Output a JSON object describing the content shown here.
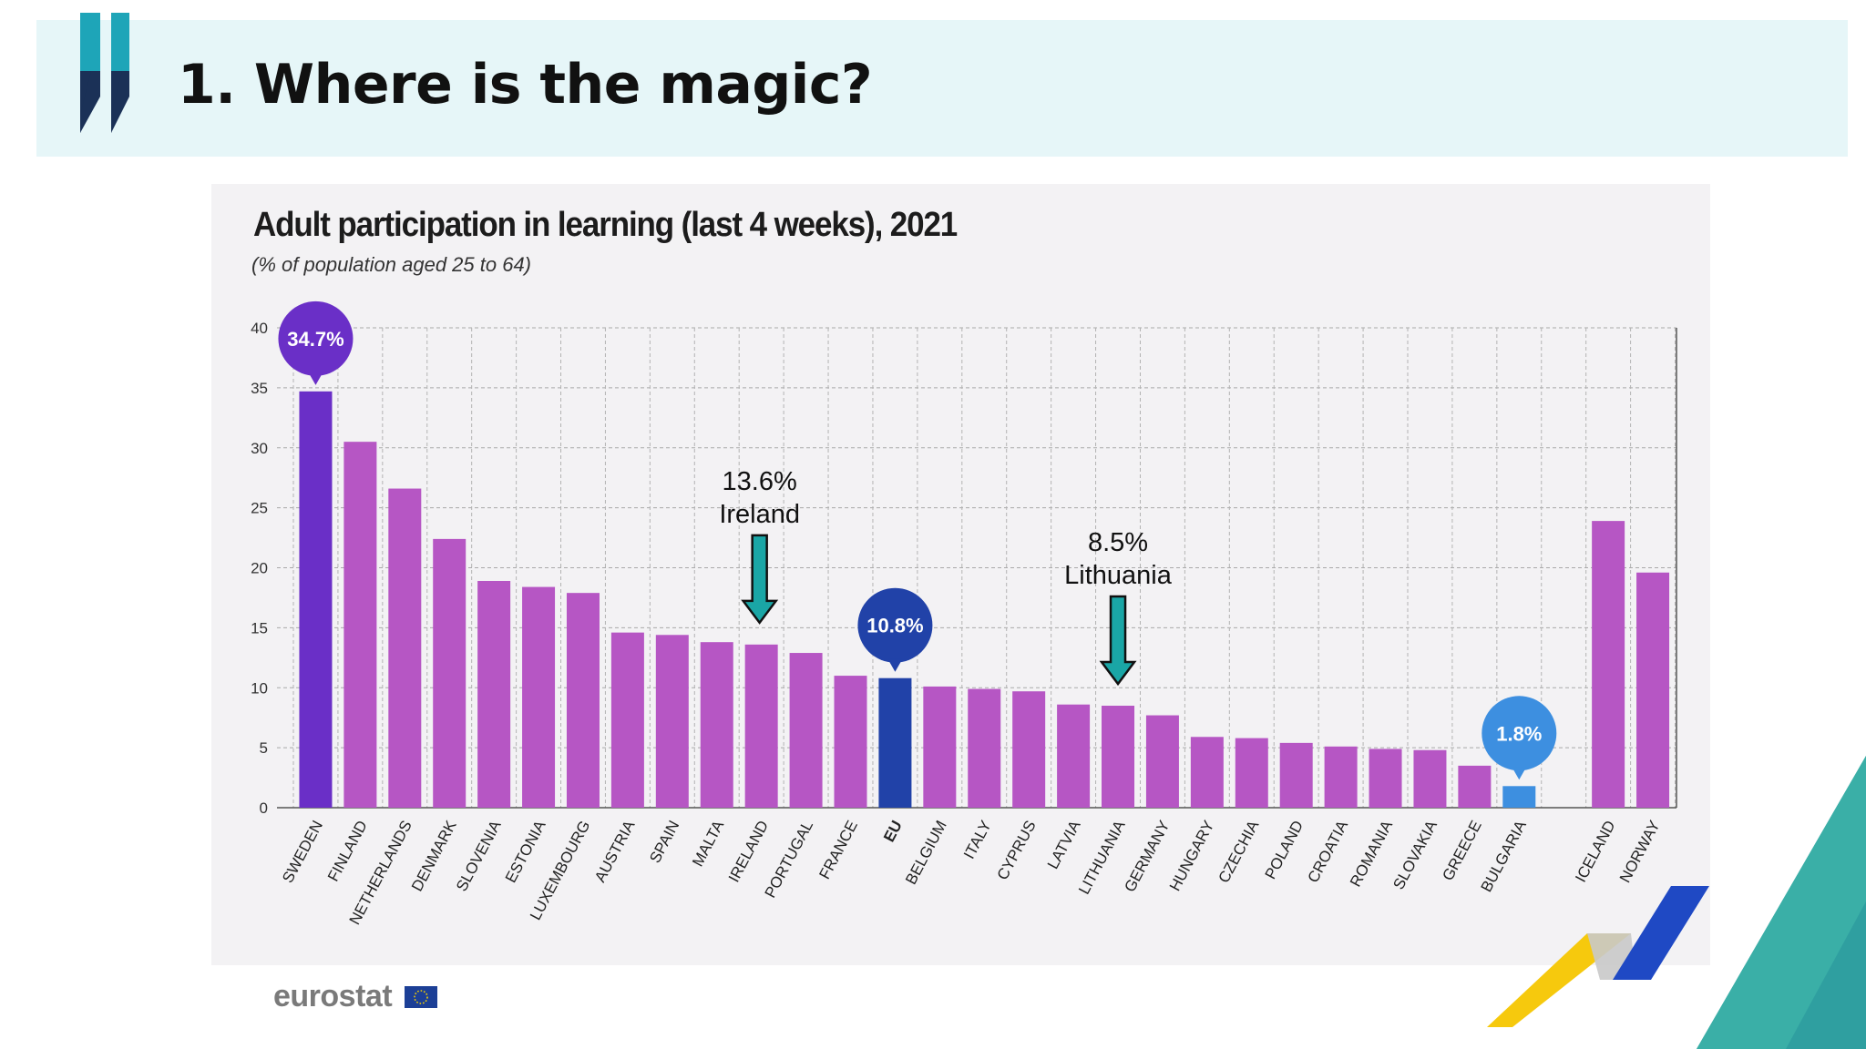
{
  "slide": {
    "title": "1. Where is the magic?",
    "brand": "eurostat"
  },
  "colors": {
    "header_bg": "#e6f6f8",
    "bar_default": "#b656c4",
    "bar_highlight_top": "#6a2fc7",
    "bar_eu": "#2142a8",
    "bar_lowest": "#3d8fe0",
    "arrow": "#1aa6a6"
  },
  "chart_data": {
    "type": "bar",
    "title": "Adult participation in learning (last 4 weeks), 2021",
    "subtitle": "(% of population aged 25 to 64)",
    "ylim": [
      0,
      40
    ],
    "yticks": [
      0,
      5,
      10,
      15,
      20,
      25,
      30,
      35,
      40
    ],
    "grid": true,
    "categories": [
      "SWEDEN",
      "FINLAND",
      "NETHERLANDS",
      "DENMARK",
      "SLOVENIA",
      "ESTONIA",
      "LUXEMBOURG",
      "AUSTRIA",
      "SPAIN",
      "MALTA",
      "IRELAND",
      "PORTUGAL",
      "FRANCE",
      "EU",
      "BELGIUM",
      "ITALY",
      "CYPRUS",
      "LATVIA",
      "LITHUANIA",
      "GERMANY",
      "HUNGARY",
      "CZECHIA",
      "POLAND",
      "CROATIA",
      "ROMANIA",
      "SLOVAKIA",
      "GREECE",
      "BULGARIA",
      "",
      "ICELAND",
      "NORWAY"
    ],
    "values": [
      34.7,
      30.5,
      26.6,
      22.4,
      18.9,
      18.4,
      17.9,
      14.6,
      14.4,
      13.8,
      13.6,
      12.9,
      11.0,
      10.8,
      10.1,
      9.9,
      9.7,
      8.6,
      8.5,
      7.7,
      5.9,
      5.8,
      5.4,
      5.1,
      4.9,
      4.8,
      3.5,
      1.8,
      null,
      23.9,
      19.6
    ],
    "bar_color_roles": [
      "highlight_top",
      "default",
      "default",
      "default",
      "default",
      "default",
      "default",
      "default",
      "default",
      "default",
      "default",
      "default",
      "default",
      "eu",
      "default",
      "default",
      "default",
      "default",
      "default",
      "default",
      "default",
      "default",
      "default",
      "default",
      "default",
      "default",
      "default",
      "lowest",
      "",
      "default",
      "default"
    ],
    "bubbles": [
      {
        "category": "SWEDEN",
        "label": "34.7%",
        "color": "#6a2fc7"
      },
      {
        "category": "EU",
        "label": "10.8%",
        "color": "#2142a8"
      },
      {
        "category": "BULGARIA",
        "label": "1.8%",
        "color": "#3d8fe0"
      }
    ],
    "annotations": [
      {
        "category": "IRELAND",
        "value_label": "13.6%",
        "name_label": "Ireland"
      },
      {
        "category": "LITHUANIA",
        "value_label": "8.5%",
        "name_label": "Lithuania"
      }
    ]
  }
}
